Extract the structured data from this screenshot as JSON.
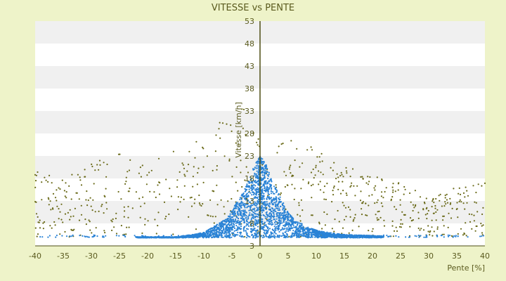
{
  "chart_data": {
    "type": "scatter",
    "title": "VITESSE vs PENTE",
    "xlabel": "Pente [%]",
    "ylabel": "Vitesse [km/h]",
    "xlim": [
      -40,
      40
    ],
    "ylim": [
      3,
      53
    ],
    "x_ticks": [
      -40,
      -35,
      -30,
      -25,
      -20,
      -15,
      -10,
      -5,
      0,
      5,
      10,
      15,
      20,
      25,
      30,
      35,
      40
    ],
    "y_ticks": [
      3,
      8,
      13,
      18,
      23,
      28,
      33,
      38,
      43,
      48,
      53
    ],
    "grid": "horizontal bands",
    "legend": "none",
    "colors": {
      "background": "#eef3c9",
      "band_light": "#ffffff",
      "band_dark": "#f0f0f0",
      "axis": "#4d4d14",
      "series_main": "#2a83d6",
      "series_olive": "#6b6b1a"
    },
    "series": [
      {
        "color": "#2a83d6",
        "description_points": [
          [
            -15,
            5.0
          ],
          [
            -12,
            5.5
          ],
          [
            -10,
            6.0
          ],
          [
            -8,
            7.5
          ],
          [
            -6,
            9.0
          ],
          [
            -5,
            11.0
          ],
          [
            -4,
            13.0
          ],
          [
            -3,
            15.0
          ],
          [
            -2,
            18.0
          ],
          [
            -1,
            21.0
          ],
          [
            0,
            23.0
          ],
          [
            1,
            21.5
          ],
          [
            2,
            18.0
          ],
          [
            3,
            15.5
          ],
          [
            4,
            13.0
          ],
          [
            5,
            10.5
          ],
          [
            6,
            9.0
          ],
          [
            8,
            7.5
          ],
          [
            10,
            6.5
          ],
          [
            12,
            6.0
          ],
          [
            15,
            5.5
          ],
          [
            20,
            5.3
          ],
          [
            25,
            5.0
          ]
        ]
      },
      {
        "color": "#6b6b1a",
        "description_points": [
          [
            -40,
            20.0
          ],
          [
            -35,
            19.0
          ],
          [
            -30,
            22.0
          ],
          [
            -25,
            24.0
          ],
          [
            -20,
            21.0
          ],
          [
            -15,
            26.0
          ],
          [
            -10,
            27.0
          ],
          [
            -7,
            31.0
          ],
          [
            -3,
            34.0
          ],
          [
            0,
            28.0
          ],
          [
            3,
            30.0
          ],
          [
            7,
            25.0
          ],
          [
            10,
            26.0
          ],
          [
            15,
            21.0
          ],
          [
            20,
            19.0
          ],
          [
            25,
            17.0
          ],
          [
            30,
            14.0
          ],
          [
            35,
            16.0
          ],
          [
            40,
            17.0
          ]
        ]
      }
    ]
  }
}
